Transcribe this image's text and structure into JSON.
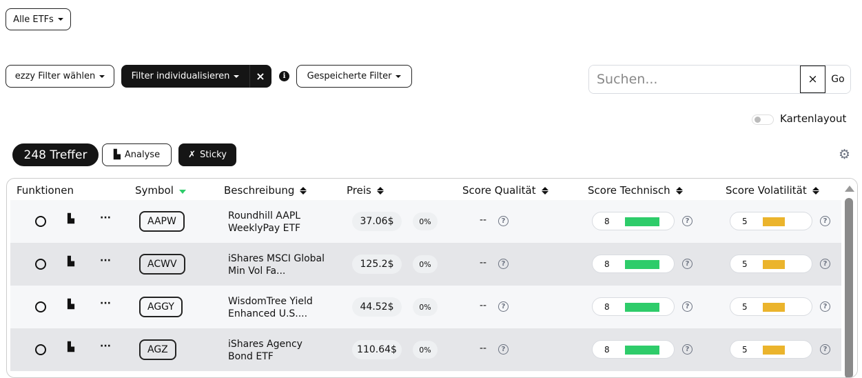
{
  "top": {
    "etf_dropdown": "Alle ETFs"
  },
  "filters": {
    "ezzy": "ezzy Filter wählen",
    "individual": "Filter individualisieren",
    "clear": "×",
    "saved": "Gespeicherte Filter"
  },
  "search": {
    "placeholder": "Suchen...",
    "value": "",
    "clear": "×",
    "go": "Go"
  },
  "card_layout": {
    "label": "Kartenlayout",
    "on": false
  },
  "results": {
    "count": "248 Treffer",
    "analyse": "Analyse",
    "sticky": "Sticky"
  },
  "colors": {
    "technisch": "#2ecc6a",
    "volatilitaet": "#ebb42c",
    "dark": "#151515"
  },
  "columns": [
    "Funktionen",
    "Symbol",
    "Beschreibung",
    "Preis",
    "Score Qualität",
    "Score Technisch",
    "Score Volatilität"
  ],
  "sort": {
    "column": "Symbol",
    "direction": "ascending"
  },
  "rows": [
    {
      "symbol": "AAPW",
      "desc1": "Roundhill AAPL",
      "desc2": "WeeklyPay ETF",
      "price": "37.06$",
      "change": "0%",
      "quality": "--",
      "tech": "8",
      "vol": "5"
    },
    {
      "symbol": "ACWV",
      "desc1": "iShares MSCI Global",
      "desc2": "Min Vol Fa...",
      "price": "125.2$",
      "change": "0%",
      "quality": "--",
      "tech": "8",
      "vol": "5"
    },
    {
      "symbol": "AGGY",
      "desc1": "WisdomTree Yield",
      "desc2": "Enhanced U.S....",
      "price": "44.52$",
      "change": "0%",
      "quality": "--",
      "tech": "8",
      "vol": "5"
    },
    {
      "symbol": "AGZ",
      "desc1": "iShares Agency",
      "desc2": "Bond ETF",
      "price": "110.64$",
      "change": "0%",
      "quality": "--",
      "tech": "8",
      "vol": "5"
    }
  ]
}
